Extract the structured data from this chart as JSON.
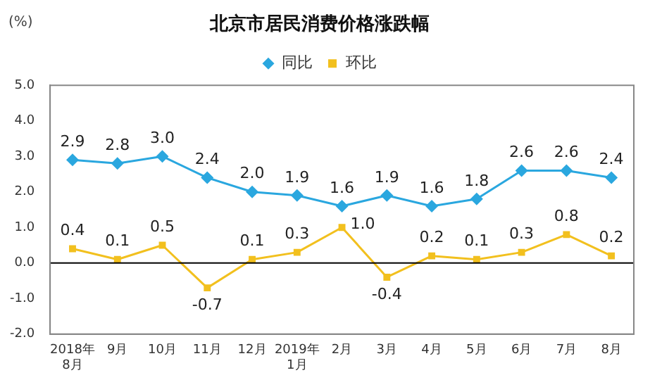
{
  "chart_data": {
    "type": "line",
    "title": "北京市居民消费价格涨跌幅",
    "ylabel": "(%)",
    "categories": [
      "2018年\n8月",
      "9月",
      "10月",
      "11月",
      "12月",
      "2019年\n1月",
      "2月",
      "3月",
      "4月",
      "5月",
      "6月",
      "7月",
      "8月"
    ],
    "series": [
      {
        "name": "同比",
        "color": "#2aa7df",
        "marker": "diamond",
        "values": [
          2.9,
          2.8,
          3.0,
          2.4,
          2.0,
          1.9,
          1.6,
          1.9,
          1.6,
          1.8,
          2.6,
          2.6,
          2.4
        ],
        "value_labels": [
          "2.9",
          "2.8",
          "3.0",
          "2.4",
          "2.0",
          "1.9",
          "1.6",
          "1.9",
          "1.6",
          "1.8",
          "2.6",
          "2.6",
          "2.4"
        ]
      },
      {
        "name": "环比",
        "color": "#f2c01e",
        "marker": "square",
        "values": [
          0.4,
          0.1,
          0.5,
          -0.7,
          0.1,
          0.3,
          1.0,
          -0.4,
          0.2,
          0.1,
          0.3,
          0.8,
          0.2
        ],
        "value_labels": [
          "0.4",
          "0.1",
          "0.5",
          "-0.7",
          "0.1",
          "0.3",
          "1.0",
          "-0.4",
          "0.2",
          "0.1",
          "0.3",
          "0.8",
          "0.2"
        ]
      }
    ],
    "ylim": [
      -2,
      5
    ],
    "yticks": [
      {
        "value": -2,
        "label": "-2.0"
      },
      {
        "value": -1,
        "label": "-1.0"
      },
      {
        "value": 0,
        "label": "0.0"
      },
      {
        "value": 1,
        "label": "1.0"
      },
      {
        "value": 2,
        "label": "2.0"
      },
      {
        "value": 3,
        "label": "3.0"
      },
      {
        "value": 4,
        "label": "4.0"
      },
      {
        "value": 5,
        "label": "5.0"
      }
    ],
    "ref_lines": [
      {
        "axis": "y",
        "value": 0,
        "color": "#000000"
      }
    ],
    "grid": false,
    "legend": "top",
    "line_style": "solid"
  }
}
